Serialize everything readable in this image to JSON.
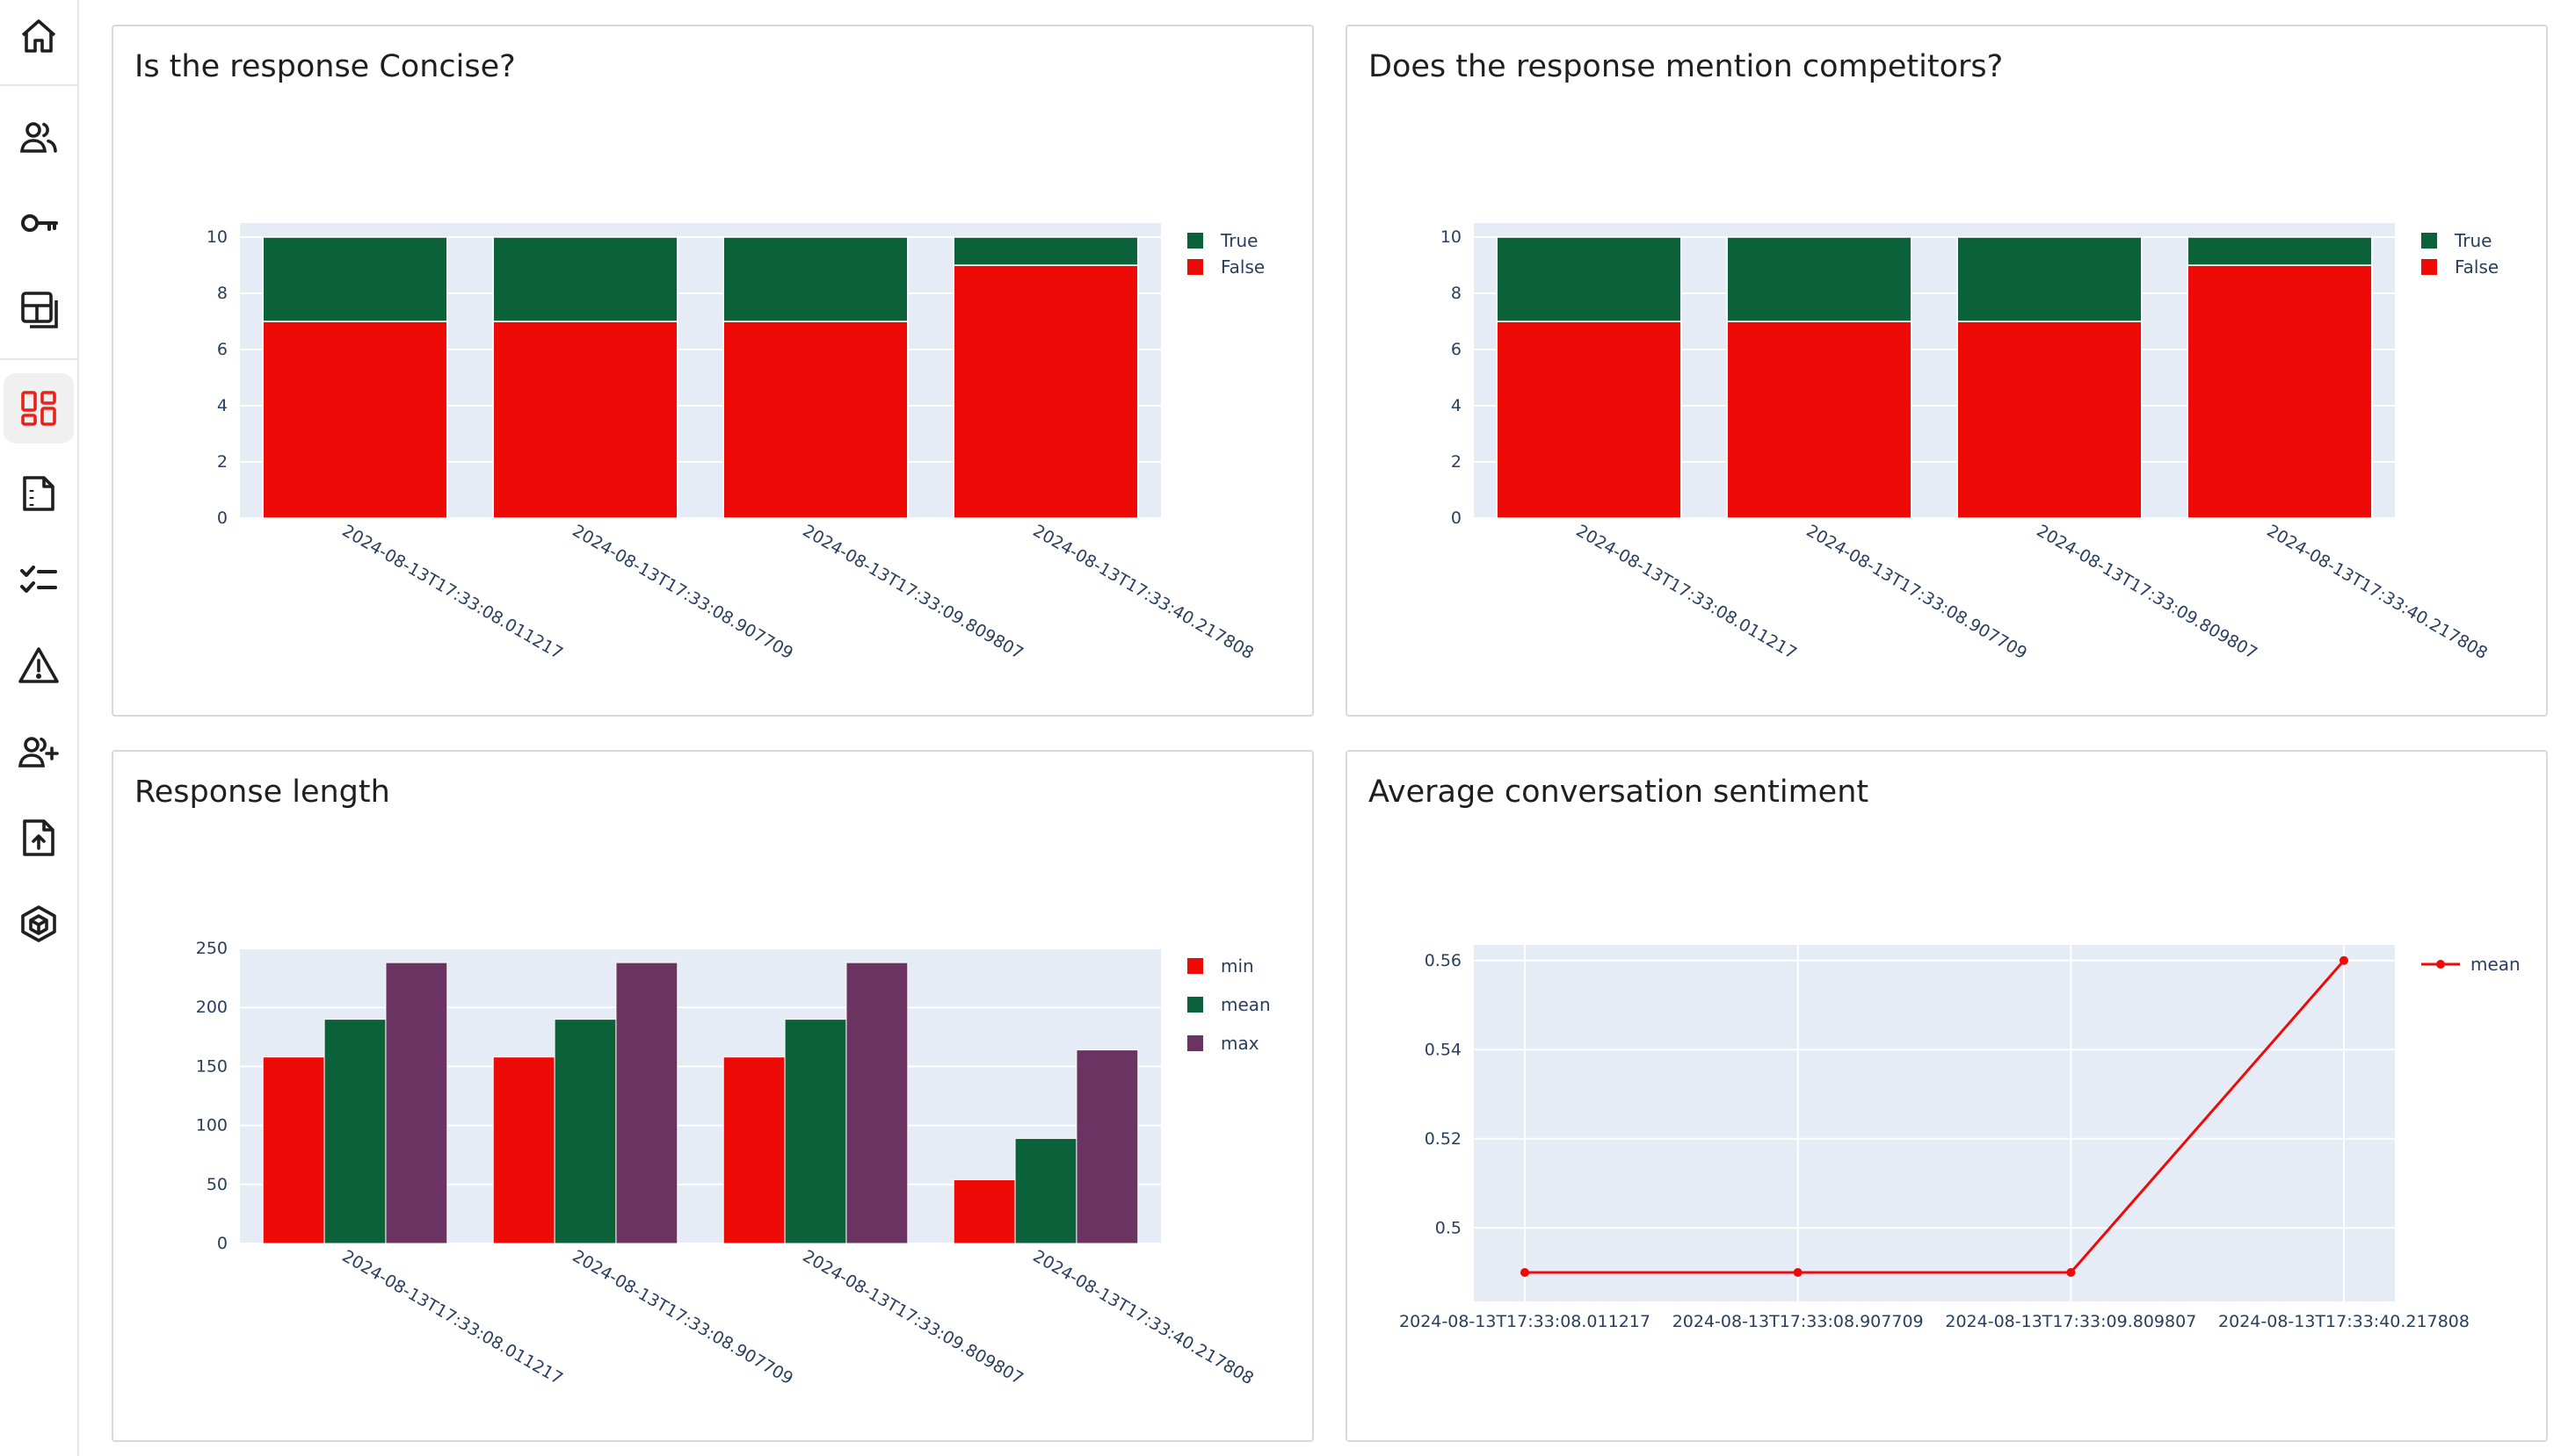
{
  "sidebar": {
    "items": [
      {
        "name": "home",
        "icon": "home-icon"
      },
      {
        "name": "users",
        "icon": "users-icon"
      },
      {
        "name": "keys",
        "icon": "key-icon"
      },
      {
        "name": "layout",
        "icon": "layout-icon"
      },
      {
        "name": "dashboard",
        "icon": "dashboard-icon",
        "active": true
      },
      {
        "name": "documents",
        "icon": "document-icon"
      },
      {
        "name": "checklist",
        "icon": "checklist-icon"
      },
      {
        "name": "alerts",
        "icon": "warning-icon"
      },
      {
        "name": "add-user",
        "icon": "add-user-icon"
      },
      {
        "name": "upload",
        "icon": "upload-file-icon"
      },
      {
        "name": "models",
        "icon": "cube-icon"
      }
    ],
    "active_color": "#e8221b",
    "icon_color": "#1f1f1f"
  },
  "panels": {
    "concise": {
      "title": "Is the response Concise?"
    },
    "competitors": {
      "title": "Does the response mention competitors?"
    },
    "length": {
      "title": "Response length"
    },
    "sentiment": {
      "title": "Average conversation sentiment"
    }
  },
  "chart_data": [
    {
      "id": "concise",
      "type": "bar",
      "stacked": true,
      "categories": [
        "2024-08-13T17:33:08.011217",
        "2024-08-13T17:33:08.907709",
        "2024-08-13T17:33:09.809807",
        "2024-08-13T17:33:40.217808"
      ],
      "series": [
        {
          "name": "False",
          "values": [
            7,
            7,
            7,
            9
          ],
          "color": "#ee0a07"
        },
        {
          "name": "True",
          "values": [
            3,
            3,
            3,
            1
          ],
          "color": "#0b623a"
        }
      ],
      "legend_order": [
        "True",
        "False"
      ],
      "yticks": [
        0,
        2,
        4,
        6,
        8,
        10
      ],
      "ylim": [
        0,
        10.5
      ],
      "legend": "top-right"
    },
    {
      "id": "competitors",
      "type": "bar",
      "stacked": true,
      "categories": [
        "2024-08-13T17:33:08.011217",
        "2024-08-13T17:33:08.907709",
        "2024-08-13T17:33:09.809807",
        "2024-08-13T17:33:40.217808"
      ],
      "series": [
        {
          "name": "False",
          "values": [
            7,
            7,
            7,
            9
          ],
          "color": "#ee0a07"
        },
        {
          "name": "True",
          "values": [
            3,
            3,
            3,
            1
          ],
          "color": "#0b623a"
        }
      ],
      "legend_order": [
        "True",
        "False"
      ],
      "yticks": [
        0,
        2,
        4,
        6,
        8,
        10
      ],
      "ylim": [
        0,
        10.5
      ],
      "legend": "top-right"
    },
    {
      "id": "length",
      "type": "bar",
      "stacked": false,
      "categories": [
        "2024-08-13T17:33:08.011217",
        "2024-08-13T17:33:08.907709",
        "2024-08-13T17:33:09.809807",
        "2024-08-13T17:33:40.217808"
      ],
      "series": [
        {
          "name": "min",
          "values": [
            158,
            158,
            158,
            54
          ],
          "color": "#ee0a07"
        },
        {
          "name": "mean",
          "values": [
            190,
            190,
            190,
            89
          ],
          "color": "#0b623a"
        },
        {
          "name": "max",
          "values": [
            238,
            238,
            238,
            164
          ],
          "color": "#6b3361"
        }
      ],
      "legend_order": [
        "min",
        "mean",
        "max"
      ],
      "yticks": [
        0,
        50,
        100,
        150,
        200,
        250
      ],
      "ylim": [
        0,
        250
      ],
      "legend": "top-right"
    },
    {
      "id": "sentiment",
      "type": "line",
      "x": [
        "2024-08-13T17:33:08.011217",
        "2024-08-13T17:33:08.907709",
        "2024-08-13T17:33:09.809807",
        "2024-08-13T17:33:40.217808"
      ],
      "series": [
        {
          "name": "mean",
          "values": [
            0.49,
            0.49,
            0.49,
            0.56
          ],
          "color": "#ee0a07"
        }
      ],
      "yticks": [
        0.5,
        0.52,
        0.54,
        0.56
      ],
      "ylim": [
        0.4835,
        0.5635
      ],
      "grid": true,
      "legend": "top-right"
    }
  ]
}
